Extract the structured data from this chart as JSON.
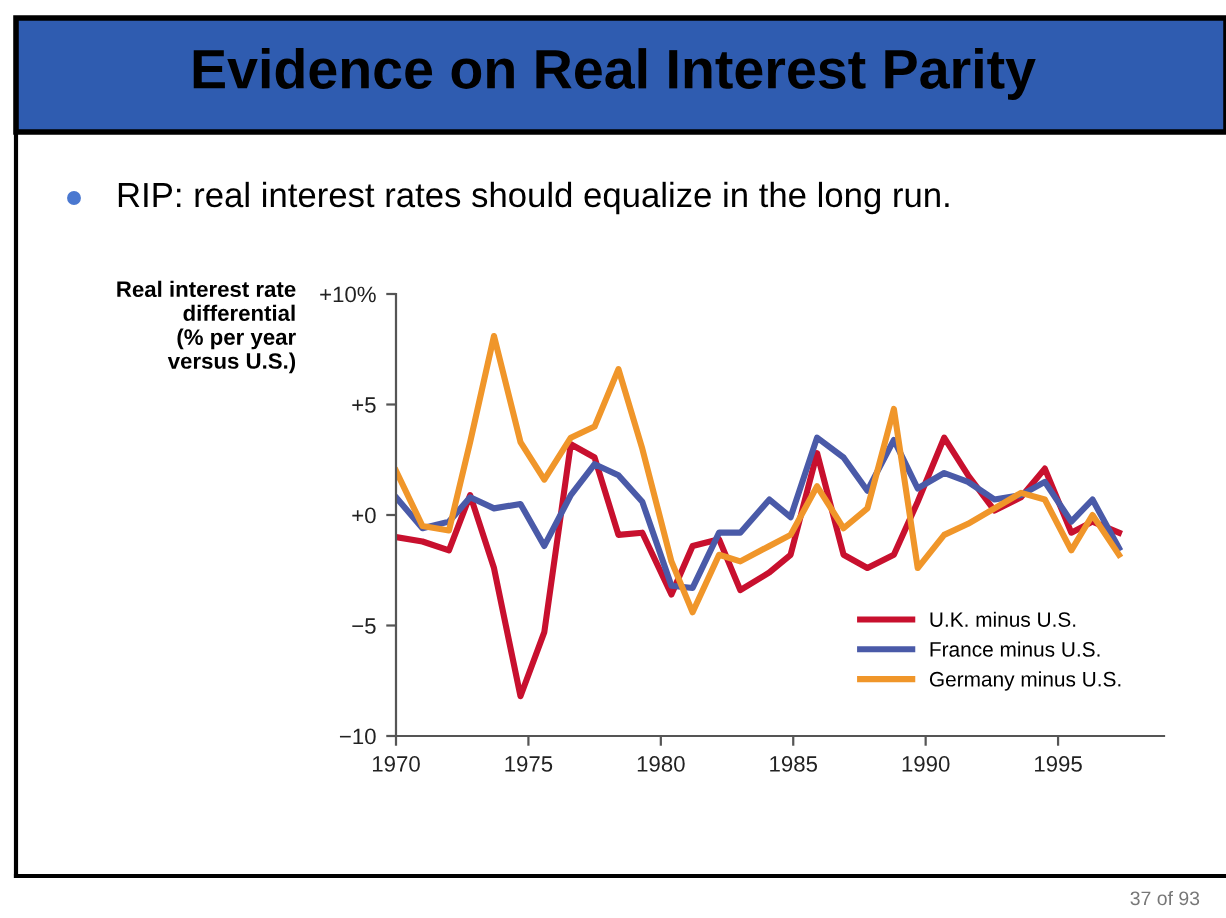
{
  "chart_data": {
    "type": "line",
    "title": "Evidence on Real Interest Parity",
    "subtitle": "RIP: real interest rates should equalize in the long run.",
    "ylabel": "Real interest rate\ndifferential\n(% per year\nversus U.S.)",
    "x": [
      1970,
      1971,
      1972,
      1972.8,
      1973.7,
      1974.7,
      1975.6,
      1976.6,
      1977.5,
      1978.4,
      1979.3,
      1980.4,
      1981.2,
      1982.2,
      1983.0,
      1984.1,
      1984.9,
      1985.9,
      1986.9,
      1987.8,
      1988.8,
      1989.7,
      1990.7,
      1991.6,
      1992.6,
      1993.6,
      1994.5,
      1995.5,
      1996.3,
      1997.3
    ],
    "series": [
      {
        "name": "U.K. minus U.S.",
        "color": "#c8102e",
        "values": [
          -1.0,
          -1.2,
          -1.6,
          0.9,
          -2.4,
          -8.2,
          -5.3,
          3.2,
          2.6,
          -0.9,
          -0.8,
          -3.6,
          -1.4,
          -1.1,
          -3.4,
          -2.6,
          -1.8,
          2.8,
          -1.8,
          -2.4,
          -1.8,
          0.6,
          3.5,
          1.8,
          0.2,
          0.8,
          2.1,
          -0.8,
          -0.3,
          -0.8
        ]
      },
      {
        "name": "France minus U.S.",
        "color": "#4a5aa8",
        "values": [
          0.8,
          -0.6,
          -0.3,
          0.8,
          0.3,
          0.5,
          -1.4,
          0.9,
          2.3,
          1.8,
          0.6,
          -3.2,
          -3.3,
          -0.8,
          -0.8,
          0.7,
          -0.1,
          3.5,
          2.6,
          1.1,
          3.4,
          1.2,
          1.9,
          1.5,
          0.7,
          0.9,
          1.5,
          -0.3,
          0.7,
          -1.5
        ]
      },
      {
        "name": "Germany minus U.S.",
        "color": "#f0962a",
        "values": [
          2.0,
          -0.5,
          -0.7,
          3.3,
          8.1,
          3.3,
          1.6,
          3.5,
          4.0,
          6.6,
          3.0,
          -2.1,
          -4.4,
          -1.8,
          -2.1,
          -1.4,
          -0.9,
          1.3,
          -0.6,
          0.3,
          4.8,
          -2.4,
          -0.9,
          -0.4,
          0.3,
          1.0,
          0.7,
          -1.6,
          0.0,
          -1.8
        ]
      }
    ],
    "xlim": [
      1970,
      1999
    ],
    "xticks": [
      1970,
      1975,
      1980,
      1985,
      1990,
      1995
    ],
    "ylim": [
      -10,
      10
    ],
    "yticks": [
      {
        "value": -10,
        "label": "−10"
      },
      {
        "value": -5,
        "label": "−5"
      },
      {
        "value": 0,
        "label": "+0"
      },
      {
        "value": 5,
        "label": "+5"
      },
      {
        "value": 10,
        "label": "+10%"
      }
    ],
    "grid": false,
    "legend": "bottom right",
    "marker": "none",
    "line_style": "solid",
    "annotations": [
      "37 of 93"
    ]
  }
}
